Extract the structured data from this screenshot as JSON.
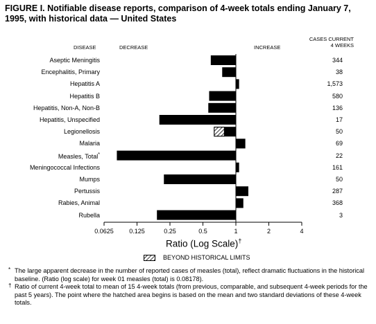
{
  "title": "FIGURE I. Notifiable disease reports, comparison of 4-week totals ending January 7, 1995, with historical data — United States",
  "headers": {
    "disease": "DISEASE",
    "decrease": "DECREASE",
    "increase": "INCREASE",
    "cases_line1": "CASES CURRENT",
    "cases_line2": "4 WEEKS"
  },
  "chart_data": {
    "type": "bar",
    "orientation": "horizontal",
    "scale": "log2",
    "baseline": 1,
    "xlabel": "Ratio (Log Scale)",
    "xlabel_mark": "†",
    "xlim": [
      0.0625,
      4
    ],
    "ticks": [
      {
        "value": 0.0625,
        "label": "0.0625"
      },
      {
        "value": 0.125,
        "label": "0.125"
      },
      {
        "value": 0.25,
        "label": "0.25"
      },
      {
        "value": 0.5,
        "label": "0.5"
      },
      {
        "value": 1,
        "label": "1"
      },
      {
        "value": 2,
        "label": "2"
      },
      {
        "value": 4,
        "label": "4"
      }
    ],
    "rows": [
      {
        "disease": "Aseptic Meningitis",
        "ratio": 0.59,
        "cases": "344"
      },
      {
        "disease": "Encephalitis, Primary",
        "ratio": 0.75,
        "cases": "38"
      },
      {
        "disease": "Hepatitis A",
        "ratio": 1.07,
        "cases": "1,573"
      },
      {
        "disease": "Hepatitis B",
        "ratio": 0.57,
        "cases": "580"
      },
      {
        "disease": "Hepatitis, Non-A, Non-B",
        "ratio": 0.56,
        "cases": "136"
      },
      {
        "disease": "Hepatitis, Unspecified",
        "ratio": 0.2,
        "cases": "17"
      },
      {
        "disease": "Legionellosis",
        "ratio": 0.63,
        "cases": "50",
        "hatch_from": 0.79
      },
      {
        "disease": "Malaria",
        "ratio": 1.22,
        "cases": "69"
      },
      {
        "disease": "Measles, Total",
        "mark": "*",
        "ratio": 0.08178,
        "cases": "22"
      },
      {
        "disease": "Meningococcal Infections",
        "ratio": 1.07,
        "cases": "161"
      },
      {
        "disease": "Mumps",
        "ratio": 0.22,
        "cases": "50"
      },
      {
        "disease": "Pertussis",
        "ratio": 1.3,
        "cases": "287"
      },
      {
        "disease": "Rabies, Animal",
        "ratio": 1.17,
        "cases": "368"
      },
      {
        "disease": "Rubella",
        "ratio": 0.19,
        "cases": "3"
      }
    ],
    "colors": {
      "bar": "#000000",
      "axis": "#000000"
    }
  },
  "legend": {
    "label": "BEYOND HISTORICAL LIMITS"
  },
  "footnotes": [
    {
      "mark": "*",
      "text": "The large apparent decrease in the number of reported cases of measles (total), reflect dramatic fluctuations in the historical baseline. (Ratio (log scale) for week 01 measles (total) is 0.08178)."
    },
    {
      "mark": "†",
      "text": "Ratio of current 4-week total to mean of 15 4-week totals (from previous, comparable, and subsequent 4-week periods for the past 5 years). The point where the hatched area begins is based on the mean and two standard deviations of these 4-week totals."
    }
  ]
}
